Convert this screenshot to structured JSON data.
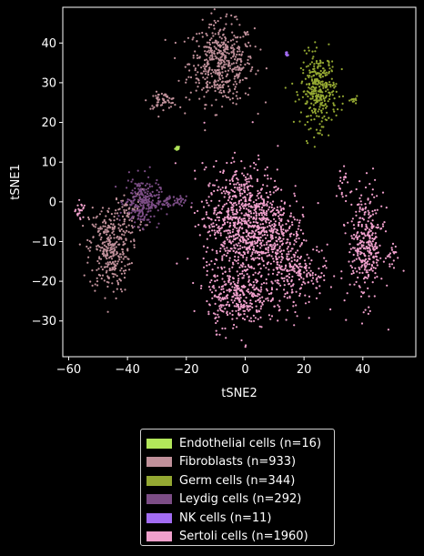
{
  "chart_data": {
    "type": "scatter",
    "xlabel": "tSNE2",
    "ylabel": "tSNE1",
    "xlim": [
      -62,
      58
    ],
    "ylim": [
      -39,
      49
    ],
    "xticks": [
      -60,
      -40,
      -20,
      0,
      20,
      40
    ],
    "yticks": [
      -30,
      -20,
      -10,
      0,
      10,
      20,
      30,
      40
    ],
    "xtick_labels": [
      "−60",
      "−40",
      "−20",
      "0",
      "20",
      "40"
    ],
    "ytick_labels": [
      "−30",
      "−20",
      "−10",
      "0",
      "10",
      "20",
      "30",
      "40"
    ],
    "grid": false,
    "legend_placement": "below",
    "series": [
      {
        "name": "Endothelial cells (n=16)",
        "color": "#b2e65a",
        "n": 16,
        "clusters": [
          {
            "cx": -23,
            "cy": 13.5,
            "sx": 0.4,
            "sy": 0.3,
            "n": 16
          }
        ]
      },
      {
        "name": "Fibroblasts (n=933)",
        "color": "#c0909a",
        "n": 933,
        "clusters": [
          {
            "cx": -8,
            "cy": 35,
            "sx": 5.5,
            "sy": 5,
            "n": 480
          },
          {
            "cx": -28,
            "cy": 25.5,
            "sx": 2.5,
            "sy": 1,
            "n": 60
          },
          {
            "cx": -46,
            "cy": -12,
            "sx": 3.5,
            "sy": 5.5,
            "n": 330
          },
          {
            "cx": -39,
            "cy": -3,
            "sx": 2.5,
            "sy": 3,
            "n": 63
          }
        ]
      },
      {
        "name": "Germ cells (n=344)",
        "color": "#94a832",
        "n": 344,
        "clusters": [
          {
            "cx": 25,
            "cy": 28,
            "sx": 3,
            "sy": 4.5,
            "n": 330
          },
          {
            "cx": 37,
            "cy": 25.5,
            "sx": 0.6,
            "sy": 0.5,
            "n": 14
          }
        ]
      },
      {
        "name": "Leydig cells (n=292)",
        "color": "#7c4d86",
        "n": 292,
        "clusters": [
          {
            "cx": -35,
            "cy": 0,
            "sx": 3,
            "sy": 3,
            "n": 230
          },
          {
            "cx": -26,
            "cy": 0,
            "sx": 3,
            "sy": 0.7,
            "n": 62
          }
        ]
      },
      {
        "name": "NK cells (n=11)",
        "color": "#a26cf2",
        "n": 11,
        "clusters": [
          {
            "cx": 14,
            "cy": 37,
            "sx": 0.3,
            "sy": 0.4,
            "n": 11
          }
        ]
      },
      {
        "name": "Sertoli cells (n=1960)",
        "color": "#f0a0cc",
        "n": 1960,
        "clusters": [
          {
            "cx": 0,
            "cy": -5,
            "sx": 7,
            "sy": 7,
            "n": 900
          },
          {
            "cx": -3,
            "cy": -24,
            "sx": 5,
            "sy": 4,
            "n": 300
          },
          {
            "cx": 13,
            "cy": -15,
            "sx": 5,
            "sy": 7,
            "n": 280
          },
          {
            "cx": 41,
            "cy": -11,
            "sx": 3,
            "sy": 7,
            "n": 330
          },
          {
            "cx": 20,
            "cy": -18,
            "sx": 4,
            "sy": 3,
            "n": 90
          },
          {
            "cx": 33,
            "cy": 5,
            "sx": 1,
            "sy": 2,
            "n": 20
          },
          {
            "cx": 50,
            "cy": -13,
            "sx": 1,
            "sy": 1.5,
            "n": 18
          },
          {
            "cx": -56,
            "cy": -2.5,
            "sx": 0.8,
            "sy": 1.2,
            "n": 22
          }
        ]
      }
    ]
  }
}
